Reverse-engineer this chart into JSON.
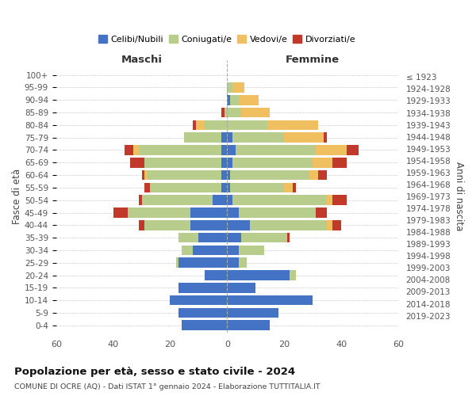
{
  "age_groups": [
    "0-4",
    "5-9",
    "10-14",
    "15-19",
    "20-24",
    "25-29",
    "30-34",
    "35-39",
    "40-44",
    "45-49",
    "50-54",
    "55-59",
    "60-64",
    "65-69",
    "70-74",
    "75-79",
    "80-84",
    "85-89",
    "90-94",
    "95-99",
    "100+"
  ],
  "birth_years": [
    "2019-2023",
    "2014-2018",
    "2009-2013",
    "2004-2008",
    "1999-2003",
    "1994-1998",
    "1989-1993",
    "1984-1988",
    "1979-1983",
    "1974-1978",
    "1969-1973",
    "1964-1968",
    "1959-1963",
    "1954-1958",
    "1949-1953",
    "1944-1948",
    "1939-1943",
    "1934-1938",
    "1929-1933",
    "1924-1928",
    "≤ 1923"
  ],
  "male": {
    "celibi": [
      16,
      17,
      20,
      17,
      8,
      17,
      12,
      10,
      13,
      13,
      5,
      2,
      2,
      2,
      2,
      2,
      0,
      0,
      0,
      0,
      0
    ],
    "coniugati": [
      0,
      0,
      0,
      0,
      0,
      1,
      4,
      7,
      16,
      22,
      25,
      25,
      26,
      27,
      29,
      13,
      8,
      1,
      0,
      0,
      0
    ],
    "vedovi": [
      0,
      0,
      0,
      0,
      0,
      0,
      0,
      0,
      0,
      0,
      0,
      0,
      1,
      0,
      2,
      0,
      3,
      0,
      0,
      0,
      0
    ],
    "divorziati": [
      0,
      0,
      0,
      0,
      0,
      0,
      0,
      0,
      2,
      5,
      1,
      2,
      1,
      5,
      3,
      0,
      1,
      1,
      0,
      0,
      0
    ]
  },
  "female": {
    "nubili": [
      15,
      18,
      30,
      10,
      22,
      4,
      4,
      5,
      8,
      4,
      2,
      1,
      1,
      2,
      3,
      2,
      0,
      0,
      1,
      0,
      0
    ],
    "coniugate": [
      0,
      0,
      0,
      0,
      2,
      3,
      9,
      16,
      27,
      27,
      33,
      19,
      28,
      28,
      28,
      18,
      14,
      5,
      3,
      2,
      0
    ],
    "vedove": [
      0,
      0,
      0,
      0,
      0,
      0,
      0,
      0,
      2,
      0,
      2,
      3,
      3,
      7,
      11,
      14,
      18,
      10,
      7,
      4,
      0
    ],
    "divorziate": [
      0,
      0,
      0,
      0,
      0,
      0,
      0,
      1,
      3,
      4,
      5,
      1,
      3,
      5,
      4,
      1,
      0,
      0,
      0,
      0,
      0
    ]
  },
  "color_celibi": "#4472c4",
  "color_coniugati": "#b8cc8c",
  "color_vedovi": "#f0c060",
  "color_divorziati": "#c0392b",
  "xlim": 60,
  "title_main": "Popolazione per età, sesso e stato civile - 2024",
  "title_sub": "COMUNE DI OCRE (AQ) - Dati ISTAT 1° gennaio 2024 - Elaborazione TUTTITALIA.IT",
  "ylabel_left": "Fasce di età",
  "ylabel_right": "Anni di nascita",
  "xlabel_left": "Maschi",
  "xlabel_right": "Femmine",
  "legend_labels": [
    "Celibi/Nubili",
    "Coniugati/e",
    "Vedovi/e",
    "Divorziati/e"
  ]
}
